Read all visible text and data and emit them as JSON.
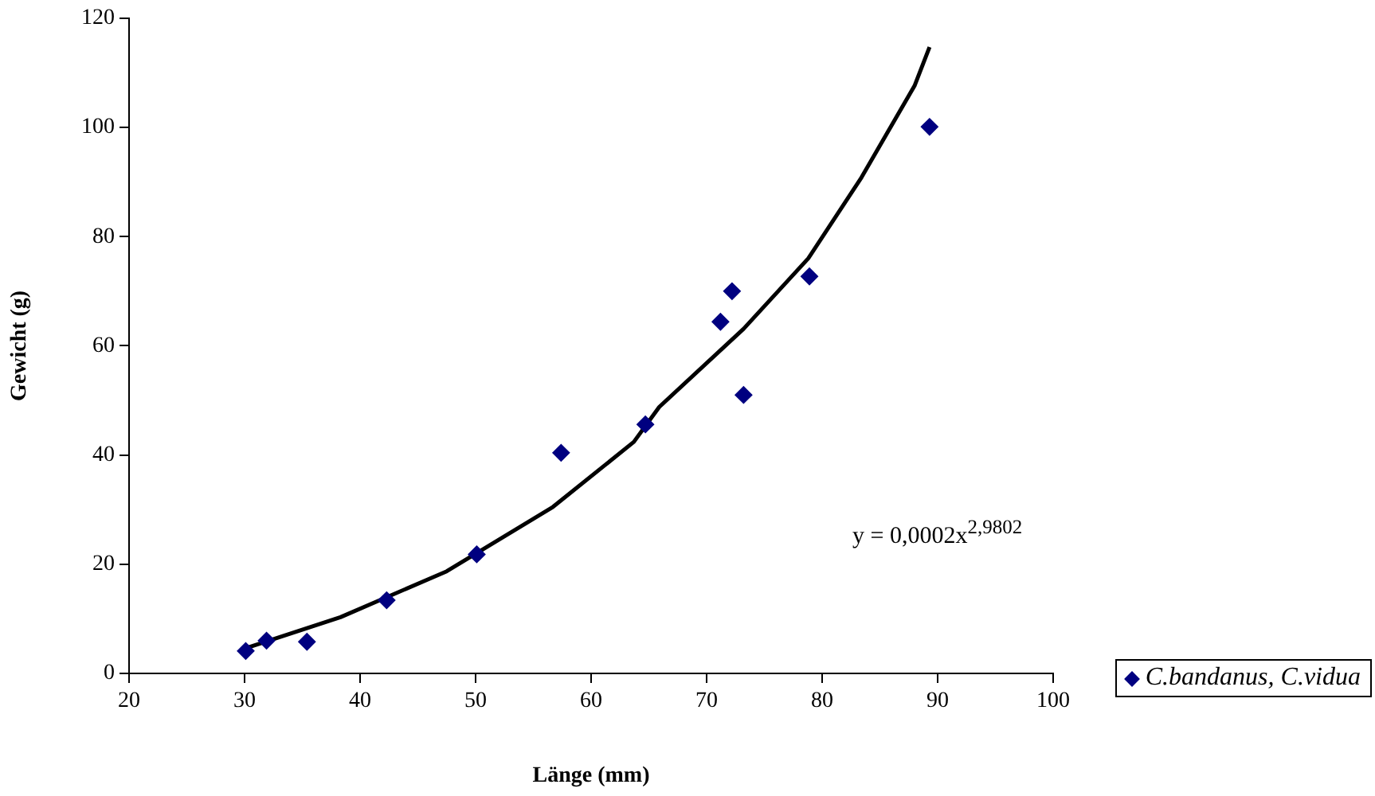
{
  "chart_data": {
    "type": "scatter",
    "xlabel": "Länge (mm)",
    "ylabel": "Gewicht (g)",
    "xlim": [
      20,
      100
    ],
    "xticks": [
      20,
      30,
      40,
      50,
      60,
      70,
      80,
      90,
      100
    ],
    "ylim": [
      0,
      120
    ],
    "yticks": [
      0,
      20,
      40,
      60,
      80,
      100,
      120
    ],
    "grid": false,
    "legend": "bottom right",
    "annotations": [
      "y = 0,0002x$^{2,9802}$"
    ],
    "x": [
      30.1,
      31.9,
      35.4,
      42.3,
      50.1,
      57.4,
      64.7,
      71.2,
      72.2,
      73.2,
      78.9,
      89.3
    ],
    "series": [
      {
        "name": "C.bandanus, C.vidua",
        "marker": "diamond",
        "color": "#000080",
        "values": [
          4.1,
          6.0,
          5.8,
          13.4,
          21.8,
          40.4,
          45.6,
          64.4,
          70.0,
          51.0,
          72.7,
          100.1
        ]
      },
      {
        "type": "line",
        "marker": "none",
        "line_style": "solid",
        "color": "#000000",
        "x": [
          30.2,
          38.3,
          47.5,
          56.7,
          63.7,
          65.9,
          73.2,
          78.8,
          83.4,
          88.0,
          89.3
        ],
        "values": [
          4.7,
          10.3,
          18.7,
          30.5,
          42.4,
          48.8,
          63.1,
          76.0,
          90.8,
          107.6,
          114.7
        ]
      }
    ]
  }
}
